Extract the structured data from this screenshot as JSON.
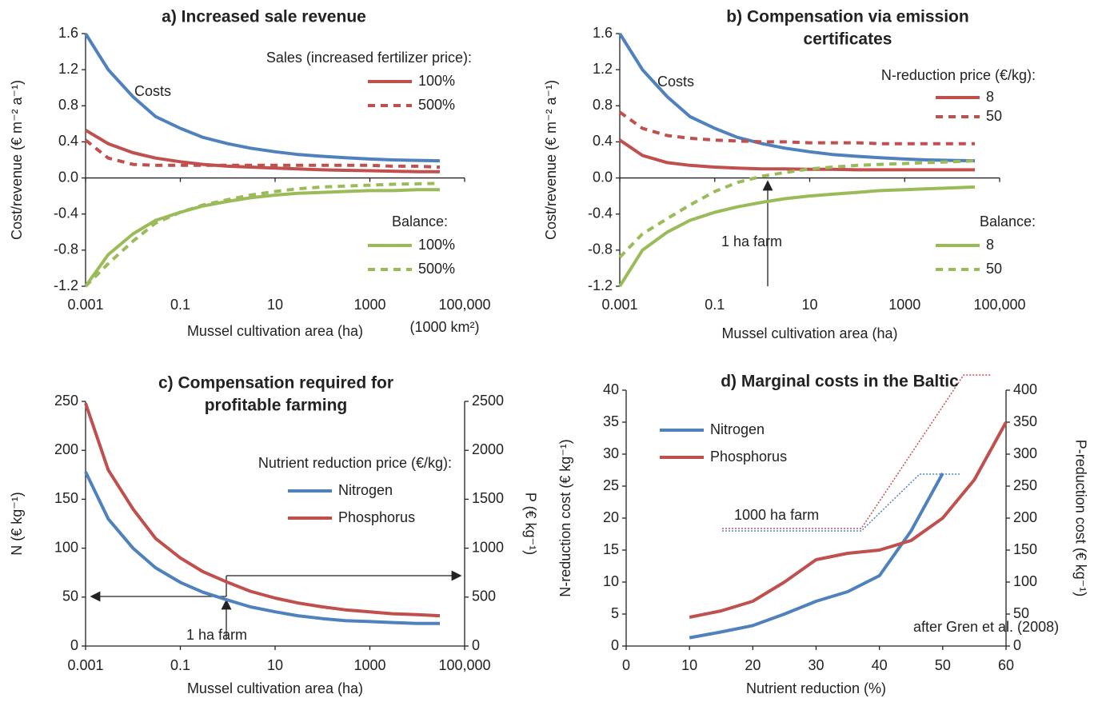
{
  "chart_data": [
    {
      "type": "line",
      "title": [
        "a) Increased sale revenue"
      ],
      "x_label": "Mussel cultivation area (ha)",
      "y_label": "Cost/revenue (€ m⁻² a⁻¹)",
      "log_x": true,
      "xlim": [
        0.001,
        100000
      ],
      "xticks": [
        0.001,
        0.1,
        10,
        1000,
        {
          "value": 100000,
          "label": "100,000"
        }
      ],
      "ylim": [
        -1.2,
        1.6
      ],
      "yticks": [
        1.6,
        1.2,
        0.8,
        0.4,
        {
          "value": 0,
          "label": "0.0"
        },
        -0.4,
        -0.8,
        -1.2
      ],
      "x": [
        0.001,
        0.003,
        0.01,
        0.03,
        0.1,
        0.3,
        1,
        3,
        10,
        30,
        100,
        300,
        1000,
        3000,
        10000,
        30000
      ],
      "series": [
        {
          "name": "Costs",
          "color": "#4f81bd",
          "dashed": false,
          "values": [
            1.6,
            1.2,
            0.9,
            0.68,
            0.55,
            0.45,
            0.38,
            0.33,
            0.29,
            0.26,
            0.24,
            0.225,
            0.21,
            0.2,
            0.195,
            0.19
          ]
        }
      ],
      "legend_groups": [
        {
          "title": "Sales (increased fertilizer price):",
          "series": [
            {
              "name": "100%",
              "color": "#c0504d",
              "dashed": false,
              "values": [
                0.53,
                0.38,
                0.28,
                0.22,
                0.18,
                0.15,
                0.13,
                0.12,
                0.11,
                0.1,
                0.09,
                0.085,
                0.08,
                0.075,
                0.07,
                0.07
              ]
            },
            {
              "name": "500%",
              "color": "#c0504d",
              "dashed": true,
              "values": [
                0.42,
                0.22,
                0.15,
                0.14,
                0.14,
                0.14,
                0.14,
                0.14,
                0.14,
                0.14,
                0.14,
                0.14,
                0.14,
                0.13,
                0.13,
                0.12
              ]
            }
          ]
        },
        {
          "title": "Balance:",
          "series": [
            {
              "name": "100%",
              "color": "#9bbb59",
              "dashed": false,
              "values": [
                -1.2,
                -0.85,
                -0.62,
                -0.47,
                -0.38,
                -0.31,
                -0.26,
                -0.22,
                -0.19,
                -0.17,
                -0.16,
                -0.15,
                -0.14,
                -0.14,
                -0.13,
                -0.13
              ]
            },
            {
              "name": "500%",
              "color": "#9bbb59",
              "dashed": true,
              "values": [
                -1.2,
                -0.95,
                -0.7,
                -0.5,
                -0.38,
                -0.3,
                -0.24,
                -0.19,
                -0.15,
                -0.12,
                -0.1,
                -0.09,
                -0.08,
                -0.07,
                -0.065,
                -0.06
              ]
            }
          ]
        }
      ],
      "annotations": [
        "(1000 km²)"
      ]
    },
    {
      "type": "line",
      "title": [
        "b) Compensation via emission",
        "certificates"
      ],
      "x_label": "Mussel cultivation area (ha)",
      "y_label": "Cost/revenue (€ m⁻² a⁻¹)",
      "log_x": true,
      "xlim": [
        0.001,
        100000
      ],
      "xticks": [
        0.001,
        0.1,
        10,
        1000,
        {
          "value": 100000,
          "label": "100,000"
        }
      ],
      "ylim": [
        -1.2,
        1.6
      ],
      "yticks": [
        1.6,
        1.2,
        0.8,
        0.4,
        {
          "value": 0,
          "label": "0.0"
        },
        -0.4,
        -0.8,
        -1.2
      ],
      "x": [
        0.001,
        0.003,
        0.01,
        0.03,
        0.1,
        0.3,
        1,
        3,
        10,
        30,
        100,
        300,
        1000,
        3000,
        10000,
        30000
      ],
      "series": [
        {
          "name": "Costs",
          "color": "#4f81bd",
          "dashed": false,
          "values": [
            1.6,
            1.2,
            0.9,
            0.68,
            0.55,
            0.45,
            0.38,
            0.33,
            0.29,
            0.26,
            0.24,
            0.225,
            0.21,
            0.2,
            0.195,
            0.19
          ]
        }
      ],
      "legend_groups": [
        {
          "title": "N-reduction price (€/kg):",
          "series": [
            {
              "name": "8",
              "color": "#c0504d",
              "dashed": false,
              "values": [
                0.42,
                0.25,
                0.17,
                0.14,
                0.12,
                0.11,
                0.1,
                0.1,
                0.095,
                0.095,
                0.09,
                0.09,
                0.09,
                0.09,
                0.09,
                0.09
              ]
            },
            {
              "name": "50",
              "color": "#c0504d",
              "dashed": true,
              "values": [
                0.73,
                0.55,
                0.47,
                0.44,
                0.42,
                0.41,
                0.4,
                0.4,
                0.39,
                0.39,
                0.39,
                0.38,
                0.38,
                0.38,
                0.38,
                0.38
              ]
            }
          ]
        },
        {
          "title": "Balance:",
          "series": [
            {
              "name": "8",
              "color": "#9bbb59",
              "dashed": false,
              "values": [
                -1.2,
                -0.8,
                -0.6,
                -0.47,
                -0.38,
                -0.32,
                -0.27,
                -0.23,
                -0.2,
                -0.18,
                -0.16,
                -0.14,
                -0.13,
                -0.12,
                -0.11,
                -0.1
              ]
            },
            {
              "name": "50",
              "color": "#9bbb59",
              "dashed": true,
              "values": [
                -0.88,
                -0.62,
                -0.45,
                -0.3,
                -0.15,
                -0.05,
                0.02,
                0.06,
                0.1,
                0.12,
                0.14,
                0.15,
                0.16,
                0.17,
                0.18,
                0.19
              ]
            }
          ]
        }
      ],
      "annotations": [
        "1 ha farm"
      ]
    },
    {
      "type": "line",
      "title": [
        "c) Compensation required for",
        "profitable farming"
      ],
      "x_label": "Mussel cultivation area (ha)",
      "y_label": "N (€ kg⁻¹)",
      "y2_label": "P (€ kg⁻¹)",
      "log_x": true,
      "xlim": [
        0.001,
        100000
      ],
      "xticks": [
        0.001,
        0.1,
        10,
        1000,
        {
          "value": 100000,
          "label": "100,000"
        }
      ],
      "ylim": [
        0,
        250
      ],
      "yticks": [
        0,
        50,
        100,
        150,
        200,
        250
      ],
      "y2lim": [
        0,
        2500
      ],
      "y2ticks": [
        0,
        500,
        1000,
        1500,
        2000,
        2500
      ],
      "x": [
        0.001,
        0.003,
        0.01,
        0.03,
        0.1,
        0.3,
        1,
        3,
        10,
        30,
        100,
        300,
        1000,
        3000,
        10000,
        30000
      ],
      "series": [],
      "legend_groups": [
        {
          "title": "Nutrient reduction price (€/kg):",
          "series": [
            {
              "name": "Nitrogen",
              "color": "#4f81bd",
              "dashed": false,
              "values": [
                178,
                130,
                100,
                80,
                65,
                55,
                47,
                40,
                35,
                31,
                28,
                26,
                25,
                24,
                23,
                23
              ]
            },
            {
              "name": "Phosphorus",
              "color": "#c0504d",
              "dashed": false,
              "axis": "y2",
              "values": [
                2480,
                1800,
                1400,
                1100,
                900,
                760,
                650,
                560,
                490,
                440,
                400,
                370,
                350,
                330,
                320,
                310
              ]
            }
          ]
        }
      ],
      "annotations": [
        "1 ha farm"
      ]
    },
    {
      "type": "line",
      "title": [
        "d) Marginal costs in the Baltic"
      ],
      "x_label": "Nutrient reduction (%)",
      "y_label": "N-reduction cost (€ kg⁻¹)",
      "y2_label": "P-reduction cost (€ kg⁻¹)",
      "log_x": false,
      "xlim": [
        0,
        60
      ],
      "xticks": [
        0,
        10,
        20,
        30,
        40,
        50,
        60
      ],
      "ylim": [
        0,
        40
      ],
      "yticks": [
        0,
        5,
        10,
        15,
        20,
        25,
        30,
        35,
        40
      ],
      "y2lim": [
        0,
        400
      ],
      "y2ticks": [
        0,
        50,
        100,
        150,
        200,
        250,
        300,
        350,
        400
      ],
      "x": [
        10,
        15,
        20,
        25,
        30,
        35,
        40,
        45,
        50,
        55,
        60
      ],
      "series": [],
      "legend_groups": [
        {
          "series": [
            {
              "name": "Nitrogen",
              "color": "#4f81bd",
              "dashed": false,
              "values": [
                1.3,
                2.2,
                3.2,
                5,
                7,
                8.5,
                11,
                18,
                27,
                null,
                null
              ]
            },
            {
              "name": "Phosphorus",
              "color": "#c0504d",
              "dashed": false,
              "axis": "y2",
              "values": [
                45,
                55,
                70,
                100,
                135,
                145,
                150,
                165,
                200,
                260,
                350
              ]
            }
          ]
        }
      ],
      "annotations": [
        "1000 ha farm",
        "after Gren et al. (2008)"
      ]
    }
  ]
}
